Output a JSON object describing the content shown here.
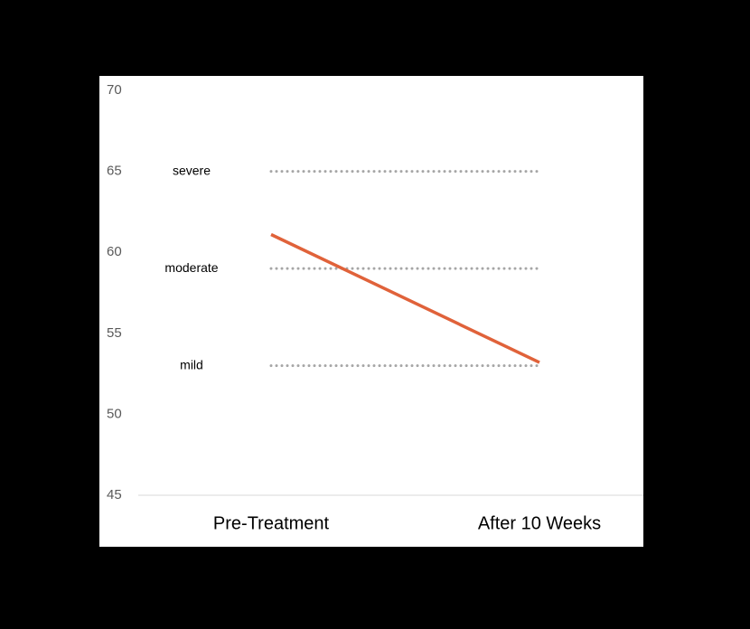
{
  "chart_data": {
    "type": "line",
    "categories": [
      "Pre-Treatment",
      "After 10 Weeks"
    ],
    "series": [
      {
        "color": "#e0623a",
        "values": [
          61.1,
          53.2
        ]
      }
    ],
    "reference_lines": [
      {
        "label": "severe",
        "value": 65
      },
      {
        "label": "moderate",
        "value": 59
      },
      {
        "label": "mild",
        "value": 53
      }
    ],
    "reference_color": "#a6a6a6",
    "ylim": [
      45,
      70
    ],
    "yticks": [
      45,
      50,
      55,
      60,
      65,
      70
    ],
    "grid": false
  }
}
